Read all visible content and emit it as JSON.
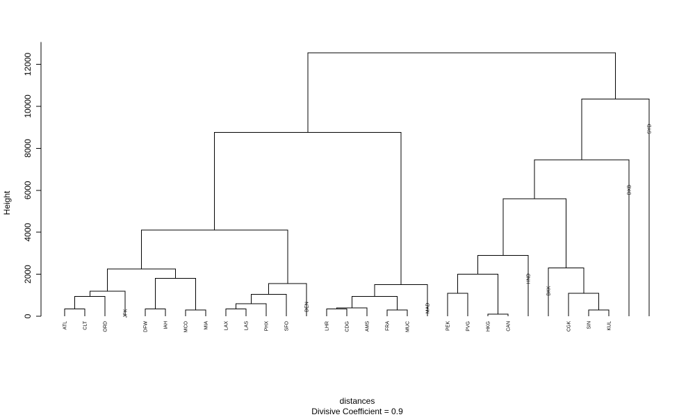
{
  "chart_data": {
    "type": "dendrogram",
    "title": "",
    "xlabel": "distances",
    "sublabel": "Divisive Coefficient =  0.9",
    "ylabel": "Height",
    "ylim": [
      0,
      12500
    ],
    "yticks": [
      0,
      2000,
      4000,
      6000,
      8000,
      10000,
      12000
    ],
    "leaves": [
      "ATL",
      "CLT",
      "ORD",
      "JFK",
      "DFW",
      "IAH",
      "MCO",
      "MIA",
      "LAX",
      "LAS",
      "PHX",
      "SFO",
      "DEN",
      "LHR",
      "CDG",
      "AMS",
      "FRA",
      "MUC",
      "MAD",
      "PEK",
      "PVG",
      "HKG",
      "CAN",
      "HND",
      "BKK",
      "CGK",
      "SIN",
      "KUL",
      "DXB",
      "SYD"
    ],
    "merges": [
      {
        "left": "ATL",
        "right": "CLT",
        "height": 350
      },
      {
        "left": "ATL,CLT",
        "right": "ORD",
        "height": 950
      },
      {
        "left": "ATL,CLT,ORD",
        "right": "JFK",
        "height": 1200
      },
      {
        "left": "DFW",
        "right": "IAH",
        "height": 350
      },
      {
        "left": "MCO",
        "right": "MIA",
        "height": 300
      },
      {
        "left": "DFW,IAH",
        "right": "MCO,MIA",
        "height": 1800
      },
      {
        "left": "ATL,CLT,ORD,JFK",
        "right": "DFW,IAH,MCO,MIA",
        "height": 2250
      },
      {
        "left": "LAX",
        "right": "LAS",
        "height": 350
      },
      {
        "left": "LAX,LAS",
        "right": "PHX",
        "height": 600
      },
      {
        "left": "LAX,LAS,PHX",
        "right": "SFO",
        "height": 1050
      },
      {
        "left": "LAX,LAS,PHX,SFO",
        "right": "DEN",
        "height": 1550
      },
      {
        "left": "ATL..MIA",
        "right": "LAX..DEN",
        "height": 4100
      },
      {
        "left": "LHR",
        "right": "CDG",
        "height": 350
      },
      {
        "left": "LHR,CDG",
        "right": "AMS",
        "height": 400
      },
      {
        "left": "FRA",
        "right": "MUC",
        "height": 300
      },
      {
        "left": "LHR,CDG,AMS",
        "right": "FRA,MUC",
        "height": 950
      },
      {
        "left": "LHR..MUC",
        "right": "MAD",
        "height": 1500
      },
      {
        "left": "ATL..DEN",
        "right": "LHR..MAD",
        "height": 8750
      },
      {
        "left": "PEK",
        "right": "PVG",
        "height": 1100
      },
      {
        "left": "HKG",
        "right": "CAN",
        "height": 100
      },
      {
        "left": "PEK,PVG",
        "right": "HKG,CAN",
        "height": 2000
      },
      {
        "left": "PEK..CAN",
        "right": "HND",
        "height": 2900
      },
      {
        "left": "SIN",
        "right": "KUL",
        "height": 300
      },
      {
        "left": "CGK",
        "right": "SIN,KUL",
        "height": 1100
      },
      {
        "left": "BKK",
        "right": "CGK,SIN,KUL",
        "height": 2300
      },
      {
        "left": "PEK..HND",
        "right": "BKK..KUL",
        "height": 5600
      },
      {
        "left": "PEK..KUL",
        "right": "DXB",
        "height": 7450
      },
      {
        "left": "PEK..DXB",
        "right": "SYD",
        "height": 10350
      },
      {
        "left": "ATL..MAD",
        "right": "PEK..SYD",
        "height": 12550
      }
    ],
    "grid": false,
    "legend": "none"
  }
}
